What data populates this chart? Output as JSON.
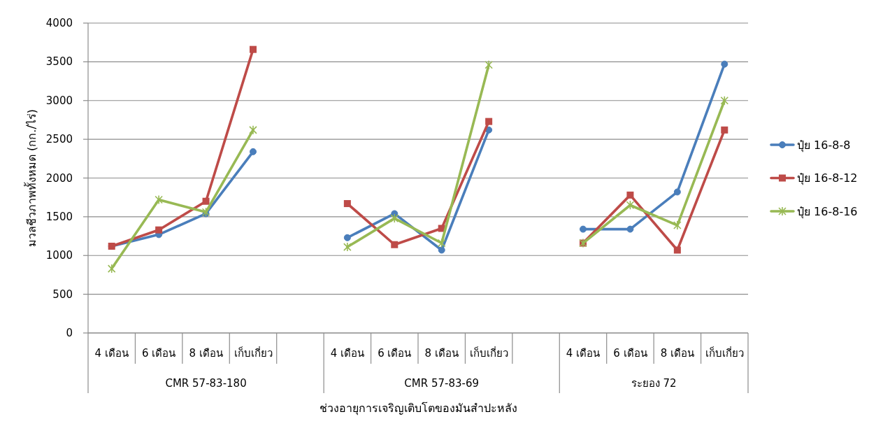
{
  "chart_data": {
    "type": "line",
    "ylabel": "มวลชีวภาพทั้งหมด (กก./ไร่)",
    "xlabel": "ช่วงอายุการเจริญเติบโตของมันสำปะหลัง",
    "categories": [
      "4 เดือน",
      "6 เดือน",
      "8 เดือน",
      "เก็บเกี่ยว",
      null,
      "4 เดือน",
      "6 เดือน",
      "8 เดือน",
      "เก็บเกี่ยว",
      null,
      "4 เดือน",
      "6 เดือน",
      "8 เดือน",
      "เก็บเกี่ยว"
    ],
    "annotations": [
      "CMR 57-83-180",
      "CMR 57-83-69",
      "ระยอง 72"
    ],
    "series": [
      {
        "name": "ปุ๋ย 16-8-8",
        "color": "#4a7ebb",
        "marker": "circle",
        "values": [
          1120,
          1270,
          1540,
          2340,
          null,
          1230,
          1540,
          1070,
          2620,
          null,
          1340,
          1340,
          1820,
          3470
        ]
      },
      {
        "name": "ปุ๋ย 16-8-12",
        "color": "#be4b48",
        "marker": "square",
        "values": [
          1120,
          1330,
          1700,
          3660,
          null,
          1670,
          1140,
          1350,
          2730,
          null,
          1160,
          1780,
          1070,
          2620
        ]
      },
      {
        "name": "ปุ๋ย 16-8-16",
        "color": "#98b954",
        "marker": "cross",
        "values": [
          830,
          1720,
          1560,
          2620,
          null,
          1110,
          1480,
          1160,
          3460,
          null,
          1160,
          1650,
          1390,
          3000
        ]
      }
    ],
    "ylim": [
      0,
      4000
    ],
    "yticks": [
      0,
      500,
      1000,
      1500,
      2000,
      2500,
      3000,
      3500,
      4000
    ],
    "grid": "y",
    "legend": "right",
    "line_style": "solid"
  }
}
